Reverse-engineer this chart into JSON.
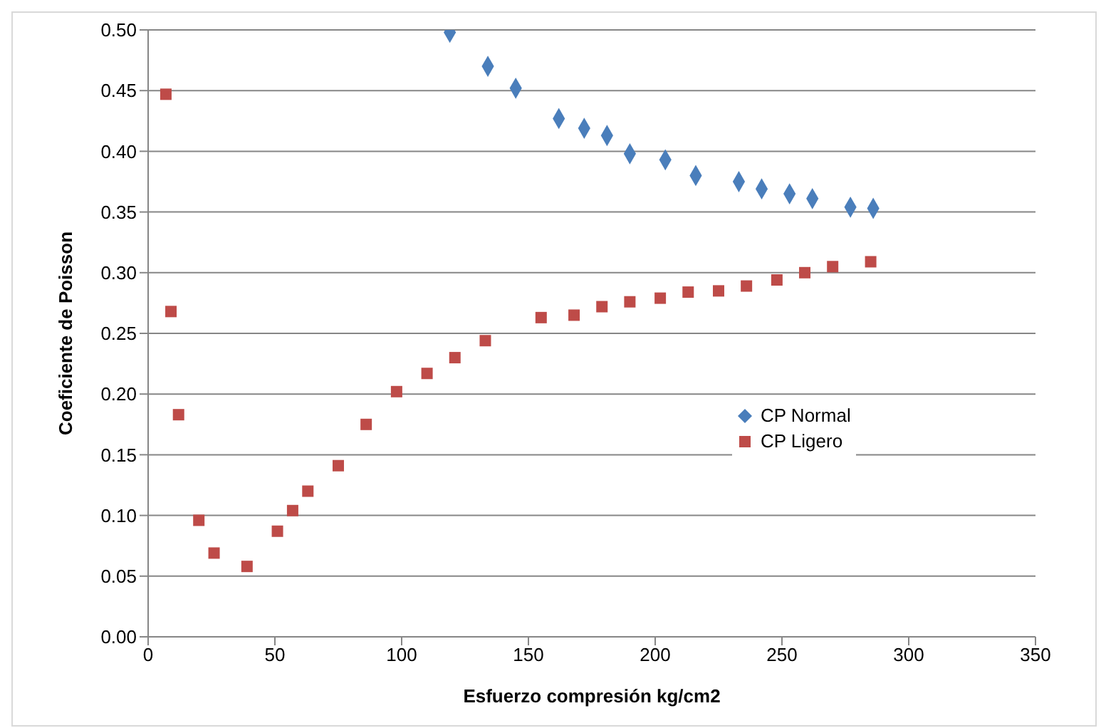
{
  "chart_data": {
    "type": "scatter",
    "xlabel": "Esfuerzo compresión kg/cm2",
    "ylabel": "Coeficiente de Poisson",
    "xlim": [
      0,
      350
    ],
    "xticks": [
      0,
      50,
      100,
      150,
      200,
      250,
      300,
      350
    ],
    "ylim": [
      0,
      0.5
    ],
    "yticks": [
      {
        "value": 0,
        "label": "0.00"
      },
      {
        "value": 0.05,
        "label": "0.05"
      },
      {
        "value": 0.1,
        "label": "0.10"
      },
      {
        "value": 0.15,
        "label": "0.15"
      },
      {
        "value": 0.2,
        "label": "0.20"
      },
      {
        "value": 0.25,
        "label": "0.25"
      },
      {
        "value": 0.3,
        "label": "0.30"
      },
      {
        "value": 0.35,
        "label": "0.35"
      },
      {
        "value": 0.4,
        "label": "0.40"
      },
      {
        "value": 0.45,
        "label": "0.45"
      },
      {
        "value": 0.5,
        "label": "0.50"
      }
    ],
    "grid": "y",
    "legend": "right",
    "series": [
      {
        "name": "CP Normal",
        "color": "#4a7ebb",
        "marker": "diamond",
        "x": [
          119,
          134,
          145,
          162,
          172,
          181,
          190,
          204,
          216,
          233,
          242,
          253,
          262,
          277,
          286
        ],
        "values": [
          0.498,
          0.47,
          0.452,
          0.427,
          0.419,
          0.413,
          0.398,
          0.393,
          0.38,
          0.375,
          0.369,
          0.365,
          0.361,
          0.354,
          0.353
        ]
      },
      {
        "name": "CP Ligero",
        "color": "#be4b48",
        "marker": "square",
        "x": [
          7,
          9,
          12,
          20,
          26,
          39,
          51,
          57,
          63,
          75,
          86,
          98,
          110,
          121,
          133,
          155,
          168,
          179,
          190,
          202,
          213,
          225,
          236,
          248,
          259,
          270,
          285
        ],
        "values": [
          0.447,
          0.268,
          0.183,
          0.096,
          0.069,
          0.058,
          0.087,
          0.104,
          0.12,
          0.141,
          0.175,
          0.202,
          0.217,
          0.23,
          0.244,
          0.263,
          0.265,
          0.272,
          0.276,
          0.279,
          0.284,
          0.285,
          0.289,
          0.294,
          0.3,
          0.305,
          0.309
        ]
      }
    ]
  }
}
